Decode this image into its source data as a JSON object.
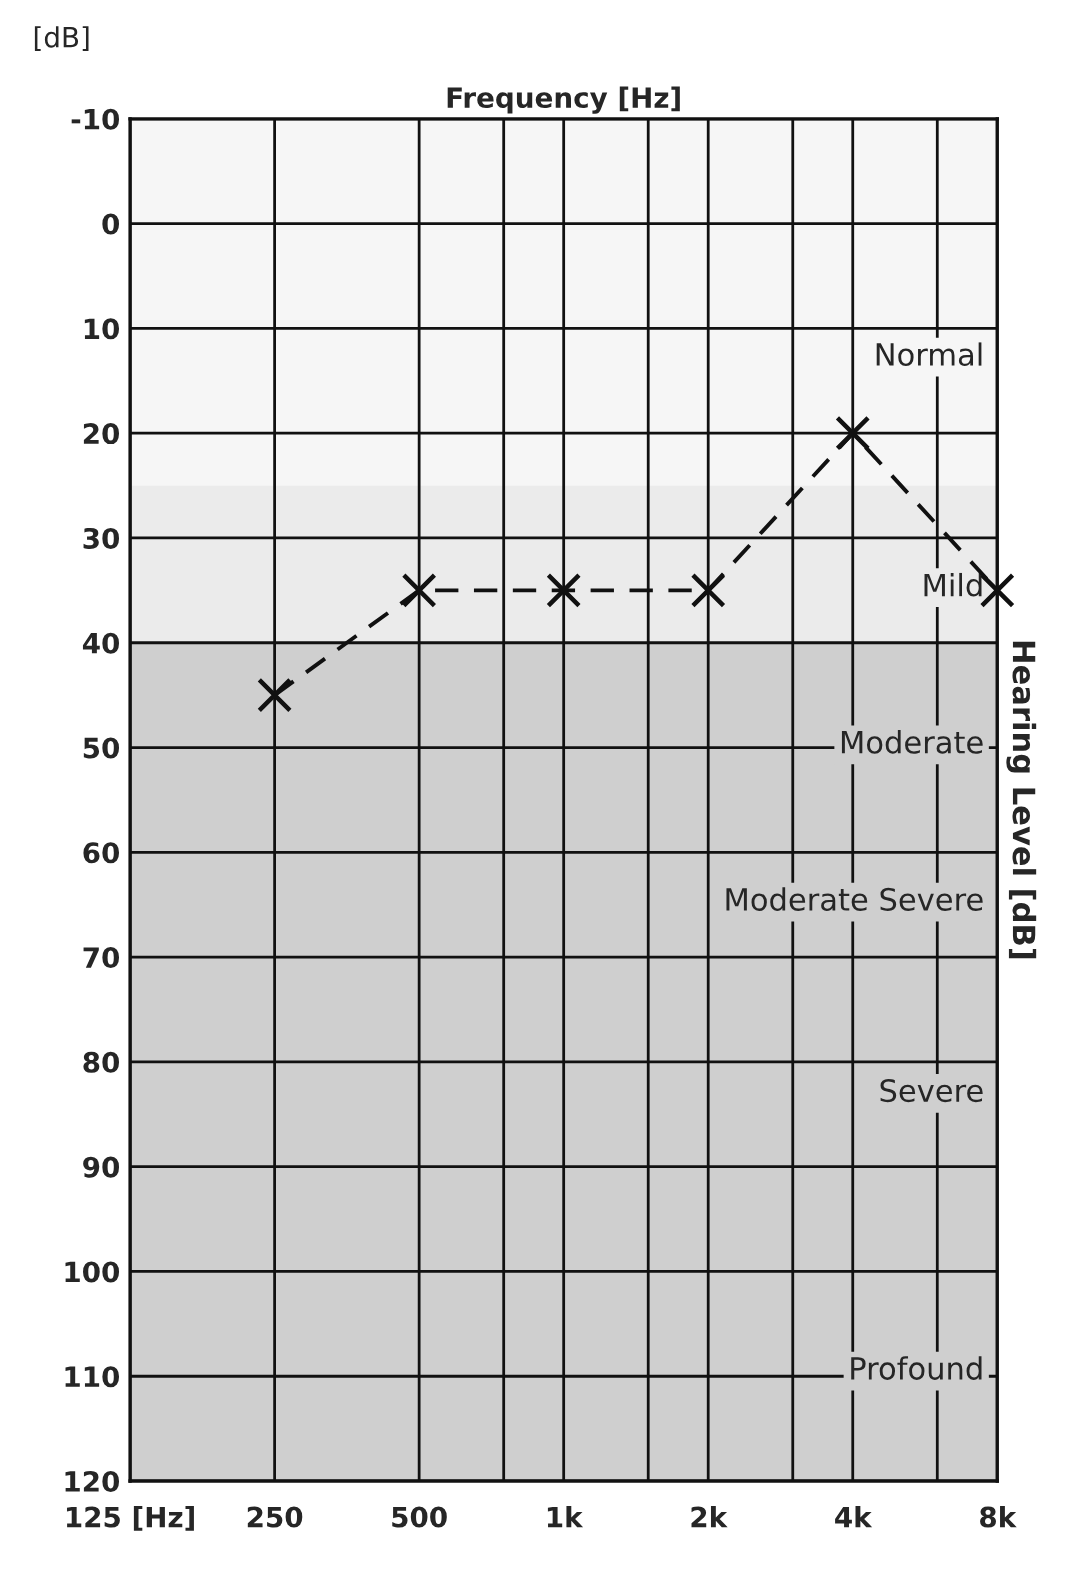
{
  "chart_data": {
    "type": "line",
    "xlabel": "Frequency [Hz]",
    "ylabel": "Hearing Level [dB]",
    "annotations": [
      "[dB]"
    ],
    "x": [
      250,
      500,
      1000,
      2000,
      4000,
      8000
    ],
    "series": [
      {
        "color": "#111111",
        "values": [
          45,
          35,
          35,
          35,
          20,
          35
        ]
      }
    ],
    "marker": "cross",
    "line_style": "dashed",
    "log": "x",
    "grid": true,
    "xlim": [
      125,
      8000
    ],
    "xticks": [
      {
        "value": 125,
        "label": "125 [Hz]"
      },
      250,
      500,
      {
        "value": 750,
        "label": null
      },
      {
        "value": 1000,
        "label": "1k"
      },
      {
        "value": 1500,
        "label": null
      },
      {
        "value": 2000,
        "label": "2k"
      },
      {
        "value": 3000,
        "label": null
      },
      {
        "value": 4000,
        "label": "4k"
      },
      {
        "value": 6000,
        "label": null
      },
      {
        "value": 8000,
        "label": "8k"
      }
    ],
    "ylim": [
      120,
      -10
    ],
    "yticks": [
      -10,
      0,
      10,
      20,
      30,
      40,
      50,
      60,
      70,
      80,
      90,
      100,
      110,
      120
    ],
    "bands": [
      {
        "axis": "y",
        "from": -10,
        "to": 25,
        "label": "Normal",
        "color": "#f6f6f6"
      },
      {
        "axis": "y",
        "from": 25,
        "to": 40,
        "label": "Mild",
        "color": "#ebebeb"
      },
      {
        "axis": "y",
        "from": 40,
        "to": 55,
        "label": "Moderate",
        "color": "#cfcfcf"
      },
      {
        "axis": "y",
        "from": 55,
        "to": 70,
        "label": "Moderate Severe",
        "color": "#cfcfcf"
      },
      {
        "axis": "y",
        "from": 70,
        "to": 90,
        "label": "Severe",
        "color": "#cfcfcf"
      },
      {
        "axis": "y",
        "from": 90,
        "to": 120,
        "label": "Profound",
        "color": "#cfcfcf"
      }
    ]
  }
}
